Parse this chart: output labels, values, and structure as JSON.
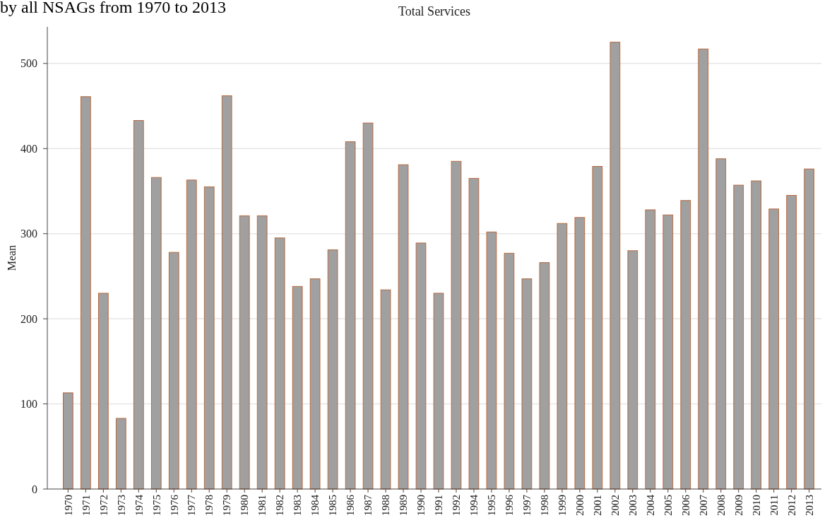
{
  "chart_data": {
    "type": "bar",
    "title": "Total Services",
    "ylabel": "Mean",
    "annotations": [
      "by all NSAGs from 1970 to 2013"
    ],
    "categories": [
      "1970",
      "1971",
      "1972",
      "1973",
      "1974",
      "1975",
      "1976",
      "1977",
      "1978",
      "1979",
      "1980",
      "1981",
      "1982",
      "1983",
      "1984",
      "1985",
      "1986",
      "1987",
      "1988",
      "1989",
      "1990",
      "1991",
      "1992",
      "1994",
      "1995",
      "1996",
      "1997",
      "1998",
      "1999",
      "2000",
      "2001",
      "2002",
      "2003",
      "2004",
      "2005",
      "2006",
      "2007",
      "2008",
      "2009",
      "2010",
      "2011",
      "2012",
      "2013"
    ],
    "series": [
      {
        "color": "#a0a0a0",
        "values": [
          113,
          461,
          230,
          83,
          433,
          366,
          278,
          363,
          355,
          462,
          321,
          321,
          295,
          238,
          247,
          281,
          408,
          430,
          234,
          381,
          289,
          230,
          385,
          365,
          302,
          277,
          247,
          266,
          312,
          319,
          379,
          525,
          280,
          328,
          322,
          339,
          517,
          388,
          357,
          362,
          329,
          345,
          376
        ]
      }
    ],
    "ylim": [
      0,
      543
    ],
    "yticks": [
      0,
      100,
      200,
      300,
      400,
      500
    ],
    "grid": "y"
  }
}
